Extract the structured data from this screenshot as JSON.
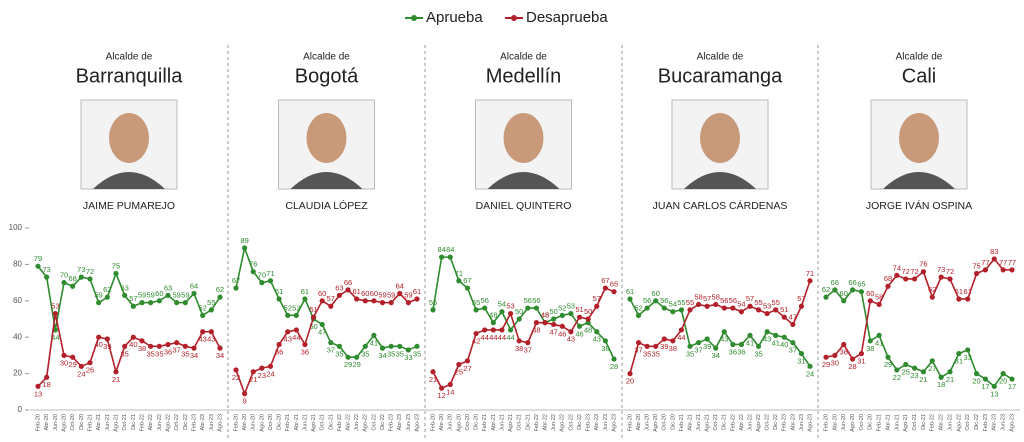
{
  "chart_data": [
    {
      "type": "line",
      "title": "Alcalde de",
      "subtitle": "Barranquilla",
      "caption": "JAIME PUMAREJO",
      "categories": [
        "Feb-20",
        "Abr-20",
        "Jun-20",
        "Ago-20",
        "Oct-20",
        "Dic-20",
        "Feb-21",
        "Abr-21",
        "Jun-21",
        "Ago-21",
        "Oct-21",
        "Dic-21",
        "Feb-22",
        "Abr-22",
        "Jun-22",
        "Ago-22",
        "Oct-22",
        "Dic-22",
        "Feb-23",
        "Abr-23",
        "Jun-23",
        "Ago-23"
      ],
      "series": [
        {
          "name": "Aprueba",
          "color": "#2e8b2e",
          "values": [
            79,
            73,
            44,
            70,
            68,
            73,
            72,
            59,
            62,
            75,
            63,
            57,
            59,
            59,
            60,
            63,
            59,
            59,
            64,
            52,
            55,
            62
          ]
        },
        {
          "name": "Desaprueba",
          "color": "#b3202a",
          "values": [
            13,
            18,
            53,
            30,
            29,
            24,
            26,
            40,
            39,
            21,
            35,
            40,
            38,
            35,
            35,
            36,
            37,
            35,
            34,
            43,
            43,
            34
          ]
        }
      ],
      "ylim": [
        0,
        100
      ],
      "yticks": [
        0,
        20,
        40,
        60,
        80,
        100
      ]
    },
    {
      "type": "line",
      "title": "Alcalde de",
      "subtitle": "Bogotá",
      "caption": "CLAUDIA LÓPEZ",
      "categories": [
        "Feb-20",
        "Abr-20",
        "Jun-20",
        "Ago-20",
        "Oct-20",
        "Dic-20",
        "Feb-21",
        "Abr-21",
        "Jun-21",
        "Ago-21",
        "Oct-21",
        "Dic-21",
        "Feb-22",
        "Abr-22",
        "Jun-22",
        "Ago-22",
        "Oct-22",
        "Dic-22",
        "Feb-23",
        "Abr-23",
        "Jun-23",
        "Ago-23"
      ],
      "series": [
        {
          "name": "Aprueba",
          "color": "#2e8b2e",
          "values": [
            67,
            89,
            76,
            70,
            71,
            61,
            52,
            52,
            61,
            50,
            47,
            37,
            35,
            29,
            29,
            35,
            41,
            34,
            35,
            35,
            33,
            35
          ]
        },
        {
          "name": "Desaprueba",
          "color": "#b3202a",
          "values": [
            22,
            9,
            21,
            23,
            24,
            36,
            43,
            44,
            36,
            51,
            60,
            57,
            63,
            66,
            61,
            60,
            60,
            59,
            59,
            64,
            59,
            61
          ]
        }
      ],
      "ylim": [
        0,
        100
      ]
    },
    {
      "type": "line",
      "title": "Alcalde de",
      "subtitle": "Medellín",
      "caption": "DANIEL QUINTERO",
      "categories": [
        "Feb-20",
        "Abr-20",
        "Jun-20",
        "Ago-20",
        "Oct-20",
        "Dic-20",
        "Feb-21",
        "Abr-21",
        "Jun-21",
        "Ago-21",
        "Oct-21",
        "Dic-21",
        "Feb-22",
        "Abr-22",
        "Jun-22",
        "Ago-22",
        "Oct-22",
        "Dic-22",
        "Feb-23",
        "Abr-23",
        "Jun-23",
        "Ago-23"
      ],
      "series": [
        {
          "name": "Aprueba",
          "color": "#2e8b2e",
          "values": [
            55,
            84,
            84,
            71,
            67,
            55,
            56,
            48,
            54,
            44,
            50,
            56,
            56,
            48,
            50,
            52,
            53,
            46,
            48,
            43,
            38,
            28
          ]
        },
        {
          "name": "Desaprueba",
          "color": "#b3202a",
          "values": [
            21,
            12,
            14,
            25,
            27,
            42,
            44,
            44,
            44,
            53,
            38,
            37,
            48,
            48,
            47,
            46,
            43,
            51,
            50,
            57,
            67,
            65
          ]
        }
      ],
      "ylim": [
        0,
        100
      ]
    },
    {
      "type": "line",
      "title": "Alcalde de",
      "subtitle": "Bucaramanga",
      "caption": "JUAN CARLOS CÁRDENAS",
      "categories": [
        "Feb-20",
        "Abr-20",
        "Jun-20",
        "Ago-20",
        "Oct-20",
        "Dic-20",
        "Feb-21",
        "Abr-21",
        "Jun-21",
        "Ago-21",
        "Oct-21",
        "Dic-21",
        "Feb-22",
        "Abr-22",
        "Jun-22",
        "Ago-22",
        "Oct-22",
        "Dic-22",
        "Feb-23",
        "Abr-23",
        "Jun-23",
        "Ago-23"
      ],
      "series": [
        {
          "name": "Aprueba",
          "color": "#2e8b2e",
          "values": [
            61,
            52,
            56,
            60,
            56,
            54,
            55,
            35,
            37,
            39,
            34,
            43,
            36,
            36,
            41,
            35,
            43,
            41,
            40,
            37,
            31,
            24
          ]
        },
        {
          "name": "Desaprueba",
          "color": "#b3202a",
          "values": [
            20,
            37,
            35,
            35,
            39,
            38,
            44,
            55,
            58,
            57,
            58,
            56,
            56,
            54,
            57,
            55,
            53,
            55,
            51,
            47,
            57,
            71
          ]
        }
      ],
      "ylim": [
        0,
        100
      ]
    },
    {
      "type": "line",
      "title": "Alcalde de",
      "subtitle": "Cali",
      "caption": "JORGE IVÁN OSPINA",
      "categories": [
        "Feb-20",
        "Abr-20",
        "Jun-20",
        "Ago-20",
        "Oct-20",
        "Dic-20",
        "Feb-21",
        "Abr-21",
        "Jun-21",
        "Ago-21",
        "Oct-21",
        "Dic-21",
        "Feb-22",
        "Abr-22",
        "Jun-22",
        "Ago-22",
        "Oct-22",
        "Dic-22",
        "Feb-23",
        "Abr-23",
        "Jun-23",
        "Ago-23"
      ],
      "series": [
        {
          "name": "Aprueba",
          "color": "#2e8b2e",
          "values": [
            62,
            66,
            60,
            66,
            65,
            38,
            41,
            29,
            22,
            25,
            23,
            21,
            27,
            18,
            21,
            31,
            33,
            20,
            17,
            13,
            20,
            17
          ]
        },
        {
          "name": "Desaprueba",
          "color": "#b3202a",
          "values": [
            29,
            30,
            36,
            28,
            31,
            60,
            58,
            68,
            74,
            72,
            72,
            76,
            62,
            73,
            72,
            61,
            61,
            75,
            77,
            83,
            77,
            77
          ]
        }
      ],
      "ylim": [
        0,
        100
      ]
    }
  ]
}
